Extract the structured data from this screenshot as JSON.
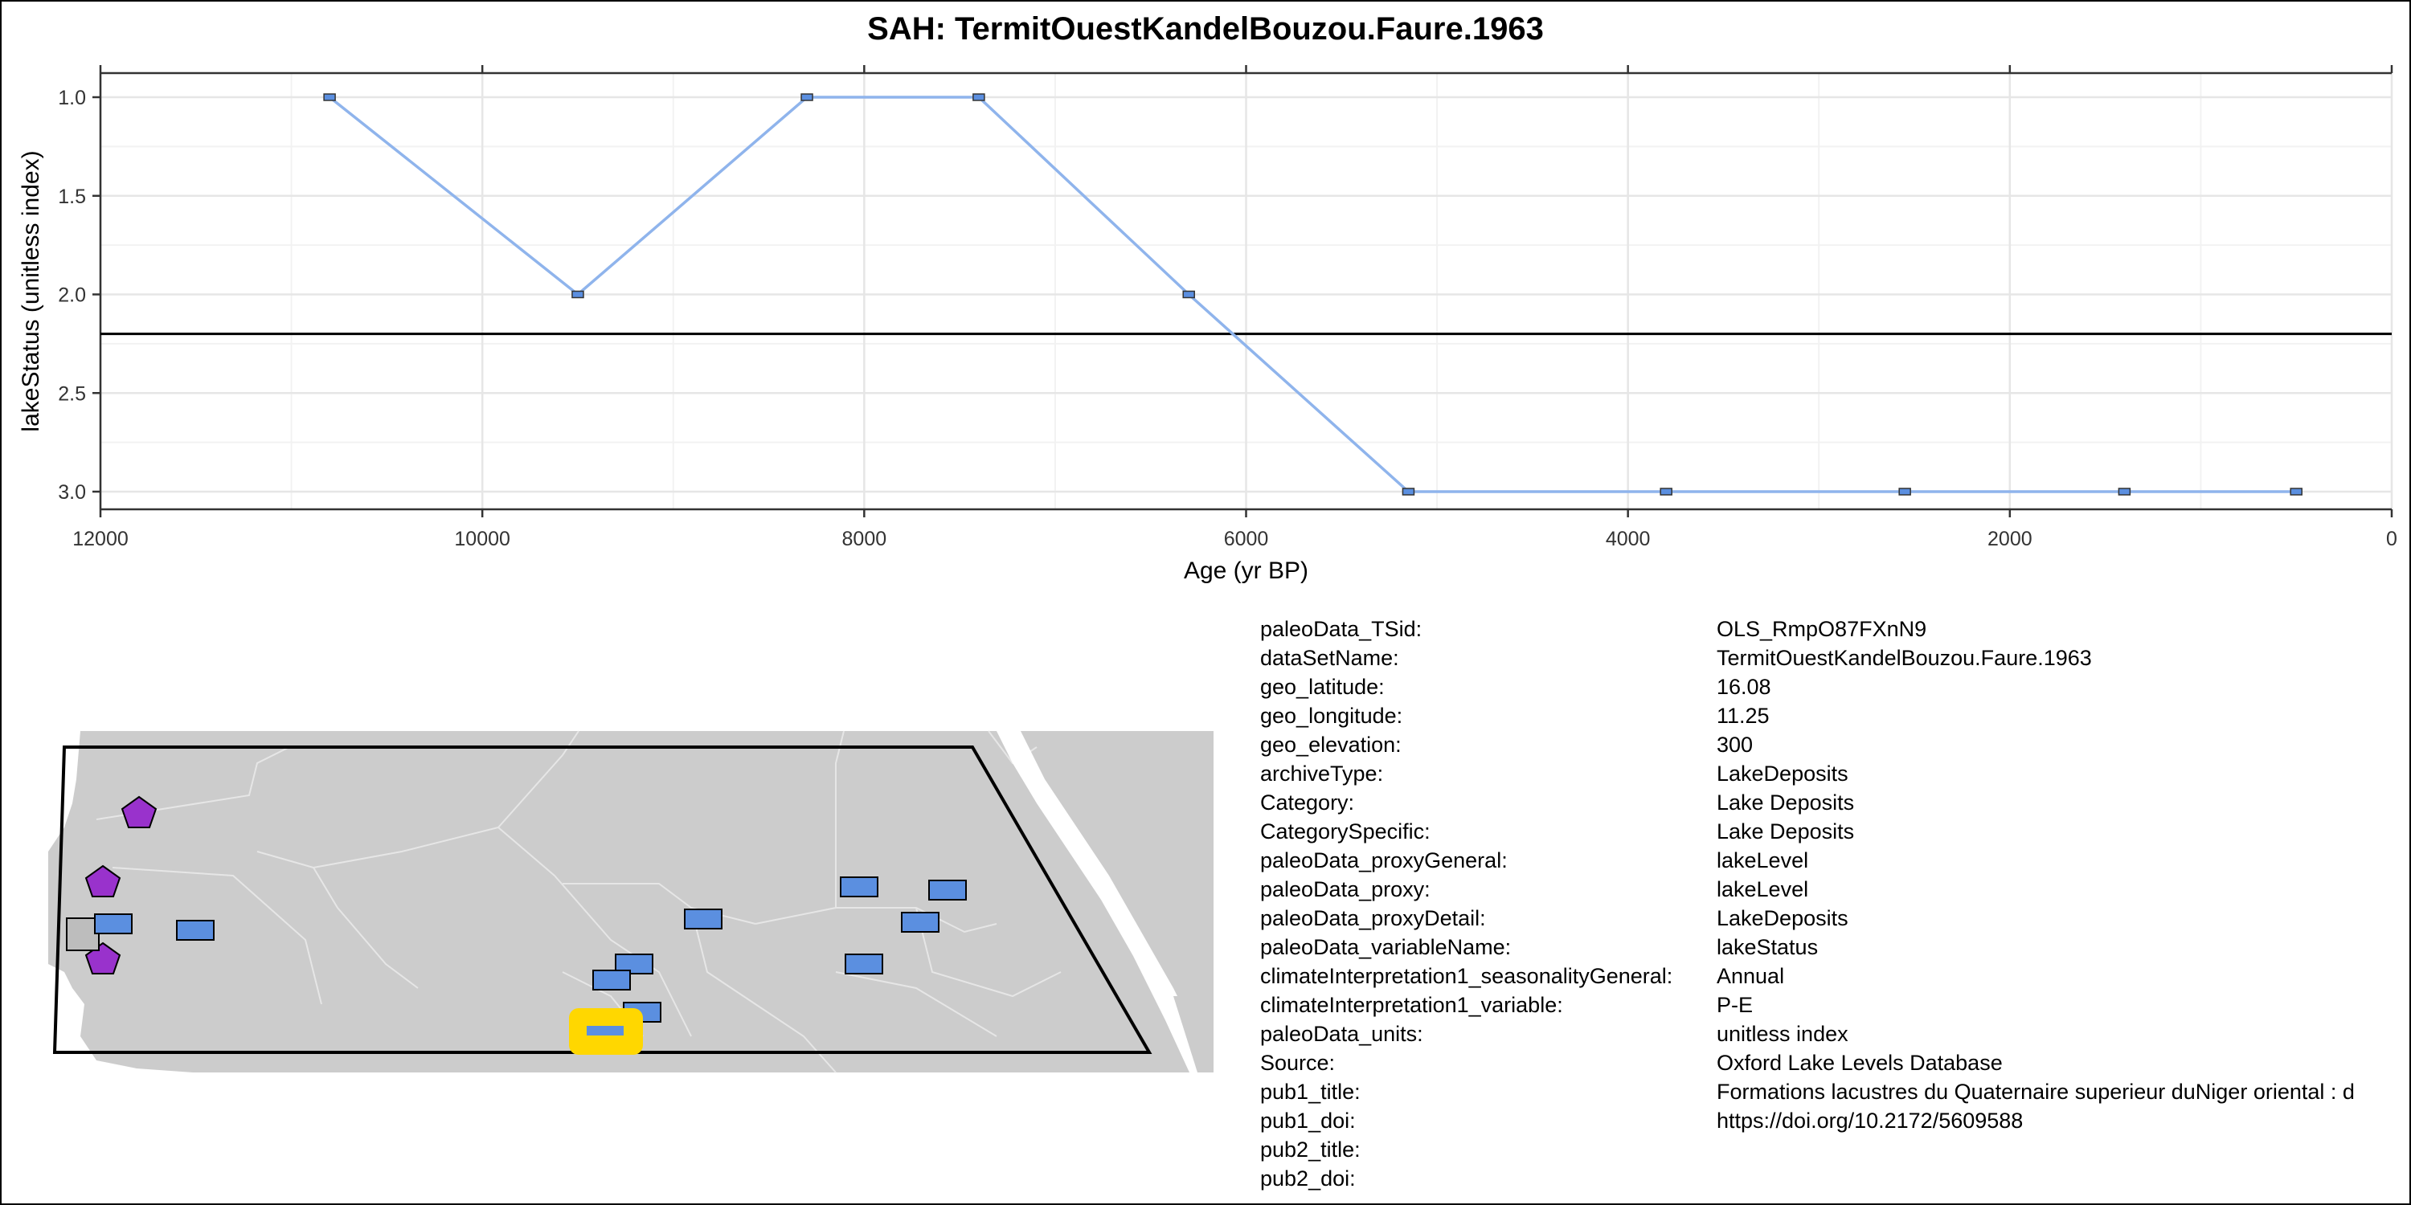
{
  "title": "SAH: TermitOuestKandelBouzou.Faure.1963",
  "chart_data": {
    "type": "line",
    "xlabel": "Age (yr BP)",
    "ylabel": "lakeStatus (unitless index)",
    "xlim": [
      12000,
      0
    ],
    "ylim": [
      3.0,
      1.0
    ],
    "x_ticks": [
      12000,
      10000,
      8000,
      6000,
      4000,
      2000,
      0
    ],
    "x_tick_labels": [
      "12000",
      "10000",
      "8000",
      "6000",
      "4000",
      "2000",
      "0"
    ],
    "y_ticks": [
      1.0,
      1.5,
      2.0,
      2.5,
      3.0
    ],
    "y_tick_labels": [
      "1.0",
      "1.5",
      "2.0",
      "2.5",
      "3.0"
    ],
    "reverse_x": true,
    "reverse_y": true,
    "grid": true,
    "reference_line_y": 2.2,
    "line_color": "#8fb4ec",
    "marker_color": "#5b8fe0",
    "x": [
      10800,
      9500,
      8300,
      7400,
      6300,
      5150,
      3800,
      2550,
      1400,
      500
    ],
    "y": [
      1,
      2,
      1,
      1,
      2,
      3,
      3,
      3,
      3,
      3
    ]
  },
  "metadata": [
    {
      "key": "paleoData_TSid:",
      "value": "OLS_RmpO87FXnN9"
    },
    {
      "key": "dataSetName:",
      "value": "TermitOuestKandelBouzou.Faure.1963"
    },
    {
      "key": "geo_latitude:",
      "value": "16.08"
    },
    {
      "key": "geo_longitude:",
      "value": "11.25"
    },
    {
      "key": "geo_elevation:",
      "value": "300"
    },
    {
      "key": "archiveType:",
      "value": "LakeDeposits"
    },
    {
      "key": "Category:",
      "value": "Lake Deposits"
    },
    {
      "key": "CategorySpecific:",
      "value": "Lake Deposits"
    },
    {
      "key": "paleoData_proxyGeneral:",
      "value": "lakeLevel"
    },
    {
      "key": "paleoData_proxy:",
      "value": "lakeLevel"
    },
    {
      "key": "paleoData_proxyDetail:",
      "value": "LakeDeposits"
    },
    {
      "key": "paleoData_variableName:",
      "value": "lakeStatus"
    },
    {
      "key": "climateInterpretation1_seasonalityGeneral:",
      "value": "Annual"
    },
    {
      "key": "climateInterpretation1_variable:",
      "value": "P-E"
    },
    {
      "key": "paleoData_units:",
      "value": "unitless index"
    },
    {
      "key": "Source:",
      "value": "Oxford Lake Levels Database"
    },
    {
      "key": "pub1_title:",
      "value": "Formations lacustres du Quaternaire superieur duNiger oriental : d"
    },
    {
      "key": "pub1_doi:",
      "value": "https://doi.org/10.2172/5609588"
    },
    {
      "key": "pub2_title:",
      "value": ""
    },
    {
      "key": "pub2_doi:",
      "value": ""
    }
  ],
  "map": {
    "land_color": "#cccccc",
    "border_color": "#e6e6e6",
    "site_color": "#5b8fe0",
    "highlight_color": "#ffd700",
    "other_marker_color": "#9932cc",
    "gray_marker_color": "#bdbdbd"
  }
}
